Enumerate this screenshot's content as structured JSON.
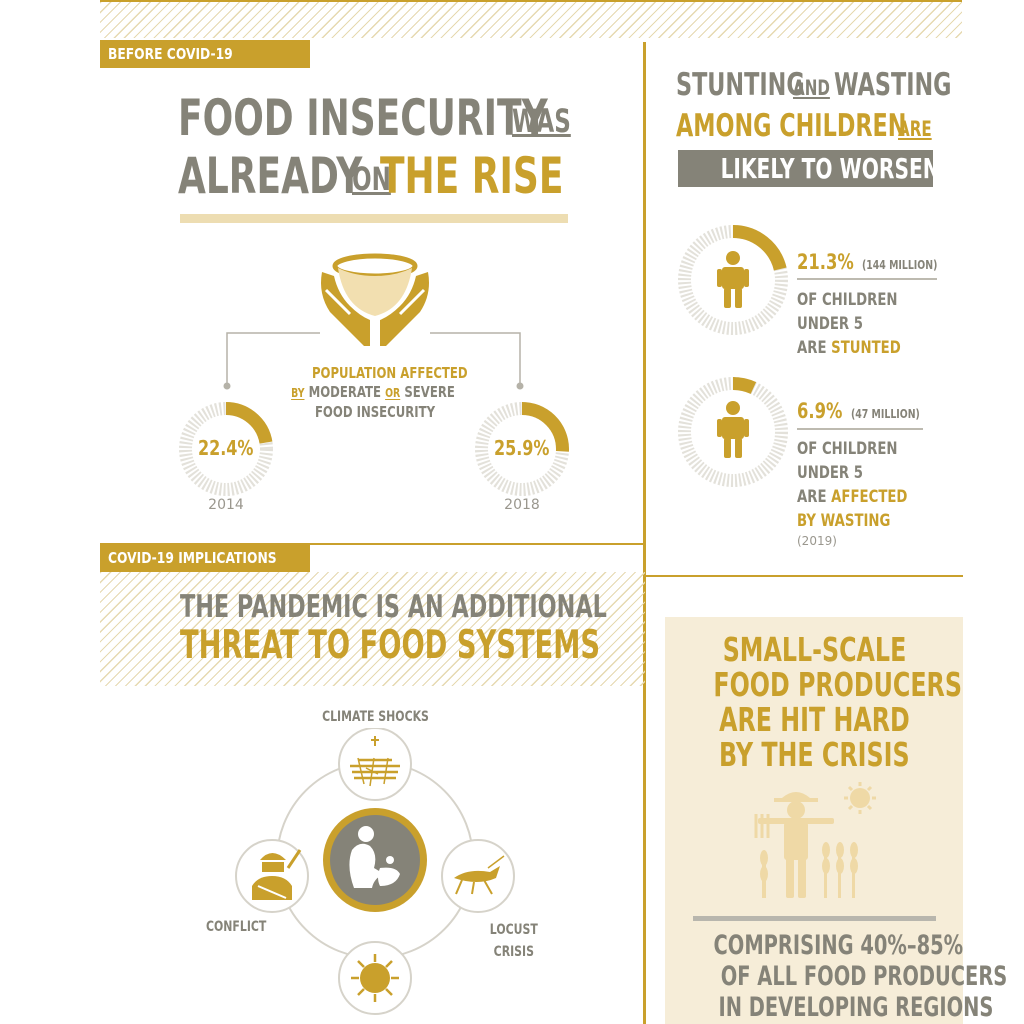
{
  "before": {
    "tag": "BEFORE COVID-19",
    "title": {
      "w1": "FOOD INSECURITY",
      "w2": "WAS",
      "w3": "ALREADY",
      "w4": "ON",
      "w5": "THE RISE"
    },
    "pop_affected": {
      "l1": "POPULATION AFFECTED",
      "l2a": "BY",
      "l2b": "MODERATE",
      "l2c": "OR",
      "l2d": "SEVERE",
      "l3": "FOOD INSECURITY"
    },
    "donut_2014": {
      "value": 22.4,
      "label": "22.4%",
      "year": "2014"
    },
    "donut_2018": {
      "value": 25.9,
      "label": "25.9%",
      "year": "2018"
    }
  },
  "stunting": {
    "title": {
      "w1": "STUNTING",
      "w2": "AND",
      "w3": "WASTING",
      "w4": "AMONG CHILDREN",
      "w5": "ARE",
      "w6": "LIKELY TO WORSEN"
    },
    "stat1": {
      "value": 21.3,
      "pct": "21.3%",
      "extra": "(144 MILLION)",
      "l1": "OF CHILDREN",
      "l2": "UNDER 5",
      "l3a": "ARE",
      "l3b": "STUNTED"
    },
    "stat2": {
      "value": 6.9,
      "pct": "6.9%",
      "extra": "(47 MILLION)",
      "l1": "OF CHILDREN",
      "l2": "UNDER 5",
      "l3a": "ARE",
      "l3b": "AFFECTED",
      "l4": "BY WASTING",
      "year": "(2019)"
    }
  },
  "covid": {
    "tag": "COVID-19 IMPLICATIONS",
    "title1": "THE PANDEMIC IS AN ADDITIONAL",
    "title2": "THREAT TO FOOD SYSTEMS",
    "labels": {
      "climate": "CLIMATE SHOCKS",
      "conflict": "CONFLICT",
      "locust1": "LOCUST",
      "locust2": "CRISIS"
    }
  },
  "producers": {
    "title": [
      "SMALL-SCALE",
      "FOOD PRODUCERS",
      "ARE HIT HARD",
      "BY THE CRISIS"
    ],
    "comprising": [
      "COMPRISING 40%–85%",
      "OF ALL FOOD PRODUCERS",
      "IN DEVELOPING REGIONS"
    ]
  },
  "colors": {
    "gold": "#C9A02C",
    "grey": "#858378",
    "beige": "#F6EDD8",
    "ring_bg": "#E3E1DA"
  }
}
